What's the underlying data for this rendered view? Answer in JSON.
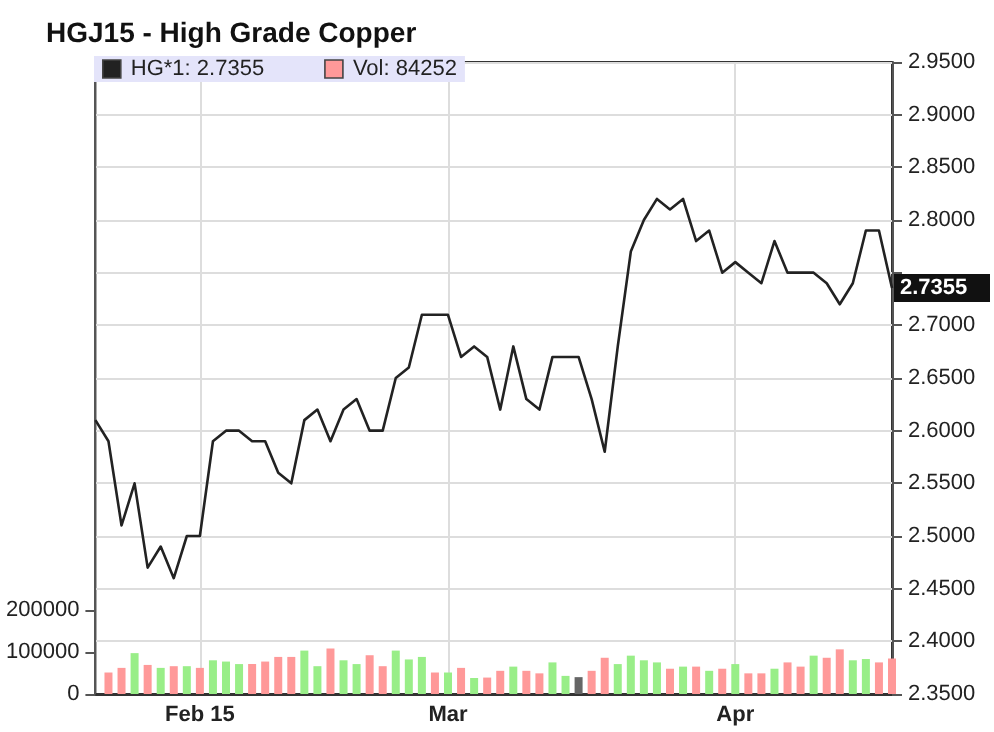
{
  "chart_data": {
    "type": "line",
    "title": "HGJ15 - High Grade Copper",
    "categories": [
      null,
      null,
      null,
      null,
      null,
      null,
      null,
      null,
      "Feb 15",
      null,
      null,
      null,
      null,
      null,
      null,
      null,
      null,
      null,
      null,
      null,
      null,
      null,
      null,
      null,
      null,
      null,
      null,
      "Mar",
      null,
      null,
      null,
      null,
      null,
      null,
      null,
      null,
      null,
      null,
      null,
      null,
      null,
      null,
      null,
      null,
      null,
      null,
      null,
      null,
      null,
      "Apr",
      null,
      null,
      null,
      null,
      null,
      null,
      null,
      null,
      null,
      null,
      null,
      null
    ],
    "series": [
      {
        "name": "HG*1: 2.7355",
        "axis": "y2",
        "color": "#222222",
        "values": [
          2.61,
          2.59,
          2.51,
          2.55,
          2.47,
          2.49,
          2.46,
          2.5,
          2.5,
          2.59,
          2.6,
          2.6,
          2.59,
          2.59,
          2.56,
          2.55,
          2.61,
          2.62,
          2.59,
          2.62,
          2.63,
          2.6,
          2.6,
          2.65,
          2.66,
          2.71,
          2.71,
          2.71,
          2.67,
          2.68,
          2.67,
          2.62,
          2.68,
          2.63,
          2.62,
          2.67,
          2.67,
          2.67,
          2.63,
          2.58,
          2.68,
          2.77,
          2.8,
          2.82,
          2.81,
          2.82,
          2.78,
          2.79,
          2.75,
          2.76,
          2.75,
          2.74,
          2.78,
          2.75,
          2.75,
          2.75,
          2.74,
          2.72,
          2.74,
          2.79,
          2.79,
          2.7355
        ]
      },
      {
        "name": "Vol: 84252",
        "type": "bar",
        "axis": "y",
        "color": "#ff9999",
        "values": [
          null,
          51000,
          62000,
          97000,
          69000,
          62000,
          66000,
          66000,
          62000,
          80000,
          77000,
          71000,
          71000,
          77000,
          88000,
          88000,
          103000,
          66000,
          108000,
          80000,
          71000,
          92000,
          66000,
          103000,
          82000,
          88000,
          51000,
          51000,
          62000,
          38000,
          39000,
          55000,
          65000,
          55000,
          49000,
          75000,
          43000,
          40000,
          55000,
          86000,
          71000,
          91000,
          80000,
          75000,
          60000,
          65000,
          65000,
          55000,
          60000,
          71000,
          49000,
          49000,
          60000,
          75000,
          65000,
          91000,
          86000,
          106000,
          80000,
          83000,
          75000,
          84252
        ],
        "colors": [
          null,
          "#ff9999",
          "#ff9999",
          "#99ee88",
          "#ff9999",
          "#99ee88",
          "#ff9999",
          "#99ee88",
          "#ff9999",
          "#99ee88",
          "#99ee88",
          "#99ee88",
          "#ff9999",
          "#ff9999",
          "#ff9999",
          "#ff9999",
          "#99ee88",
          "#99ee88",
          "#ff9999",
          "#99ee88",
          "#99ee88",
          "#ff9999",
          "#ff9999",
          "#99ee88",
          "#99ee88",
          "#99ee88",
          "#ff9999",
          "#99ee88",
          "#ff9999",
          "#99ee88",
          "#ff9999",
          "#ff9999",
          "#99ee88",
          "#ff9999",
          "#ff9999",
          "#99ee88",
          "#99ee88",
          "#666666",
          "#ff9999",
          "#ff9999",
          "#99ee88",
          "#99ee88",
          "#99ee88",
          "#99ee88",
          "#ff9999",
          "#99ee88",
          "#ff9999",
          "#99ee88",
          "#ff9999",
          "#99ee88",
          "#ff9999",
          "#ff9999",
          "#99ee88",
          "#ff9999",
          "#ff9999",
          "#99ee88",
          "#ff9999",
          "#ff9999",
          "#99ee88",
          "#99ee88",
          "#ff9999",
          "#ff9999"
        ]
      }
    ],
    "ylim": [
      0,
      1500000
    ],
    "yticks": [
      0,
      100000,
      200000
    ],
    "y2lim": [
      2.35,
      2.95
    ],
    "y2ticks": [
      {
        "value": 2.35,
        "label": "2.3500"
      },
      {
        "value": 2.4,
        "label": "2.4000"
      },
      {
        "value": 2.45,
        "label": "2.4500"
      },
      {
        "value": 2.5,
        "label": "2.5000"
      },
      {
        "value": 2.55,
        "label": "2.5500"
      },
      {
        "value": 2.6,
        "label": "2.6000"
      },
      {
        "value": 2.65,
        "label": "2.6500"
      },
      {
        "value": 2.7,
        "label": "2.7000"
      },
      {
        "value": 2.75,
        "label": null
      },
      {
        "value": 2.8,
        "label": "2.8000"
      },
      {
        "value": 2.85,
        "label": "2.8500"
      },
      {
        "value": 2.9,
        "label": "2.9000"
      },
      {
        "value": 2.95,
        "label": "2.9500"
      }
    ],
    "annotations": [
      "2.7355"
    ],
    "grid": true,
    "legend": "top left",
    "marker": "none",
    "line_style": "solid"
  }
}
